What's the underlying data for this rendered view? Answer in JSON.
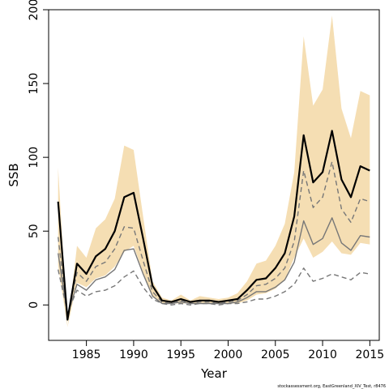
{
  "chart_data": {
    "type": "line",
    "title": "",
    "xlabel": "Year",
    "ylabel": "SSB",
    "xlim": [
      1981,
      2016
    ],
    "ylim": [
      -24,
      200
    ],
    "xticks": [
      1985,
      1990,
      1995,
      2000,
      2005,
      2010,
      2015
    ],
    "yticks": [
      0,
      50,
      100,
      150,
      200
    ],
    "grid": false,
    "legend": "none",
    "x": [
      1982,
      1983,
      1984,
      1985,
      1986,
      1987,
      1988,
      1989,
      1990,
      1991,
      1992,
      1993,
      1994,
      1995,
      1996,
      1997,
      1998,
      1999,
      2000,
      2001,
      2002,
      2003,
      2004,
      2005,
      2006,
      2007,
      2008,
      2009,
      2010,
      2011,
      2012,
      2013,
      2014,
      2015
    ],
    "band": {
      "color": "#f5deb3",
      "upper": [
        93,
        -15,
        40,
        32,
        52,
        58,
        72,
        108,
        105,
        60,
        16,
        5,
        3,
        7,
        3,
        6,
        5,
        4,
        5,
        8,
        16,
        28,
        30,
        40,
        55,
        90,
        182,
        135,
        146,
        196,
        133,
        113,
        145,
        142
      ],
      "lower": [
        27,
        -15,
        15,
        12,
        18,
        20,
        26,
        36,
        40,
        22,
        6,
        1,
        1,
        1,
        1,
        1,
        1,
        1,
        1,
        1,
        3,
        7,
        8,
        11,
        17,
        32,
        45,
        32,
        36,
        43,
        35,
        34,
        42,
        41
      ]
    },
    "series": [
      {
        "role": "estimate",
        "color": "#000000",
        "width": 2.2,
        "dash": "",
        "values": [
          70,
          -10,
          28,
          21,
          33,
          38,
          50,
          73,
          76,
          45,
          13,
          3,
          2,
          4,
          2,
          3,
          3,
          2,
          3,
          4,
          10,
          17,
          18,
          25,
          35,
          60,
          115,
          83,
          90,
          118,
          85,
          73,
          94,
          91
        ]
      },
      {
        "role": "upper-dashed",
        "color": "#777777",
        "width": 1.4,
        "dash": "6,4",
        "values": [
          46,
          -8,
          22,
          16,
          26,
          29,
          38,
          53,
          52,
          30,
          9,
          2,
          1,
          3,
          1,
          2,
          2,
          1,
          2,
          3,
          7,
          13,
          14,
          18,
          25,
          43,
          91,
          66,
          73,
          97,
          65,
          56,
          72,
          70
        ]
      },
      {
        "role": "lower-solid",
        "color": "#777777",
        "width": 1.4,
        "dash": "",
        "values": [
          35,
          -7,
          14,
          10,
          17,
          19,
          24,
          37,
          38,
          21,
          6,
          1,
          1,
          2,
          1,
          1,
          1,
          1,
          1,
          2,
          5,
          9,
          9,
          12,
          17,
          29,
          57,
          41,
          45,
          59,
          42,
          37,
          47,
          46
        ]
      },
      {
        "role": "lower-dashed",
        "color": "#777777",
        "width": 1.4,
        "dash": "6,4",
        "values": [
          24,
          -5,
          10,
          6,
          9,
          10,
          13,
          19,
          23,
          12,
          4,
          1,
          0,
          1,
          0,
          1,
          1,
          0,
          1,
          1,
          2,
          4,
          4,
          6,
          9,
          14,
          25,
          16,
          18,
          21,
          19,
          17,
          22,
          21
        ]
      }
    ]
  },
  "credit": "stockassessment.org, EastGreenland_XIV_Test, r8476"
}
